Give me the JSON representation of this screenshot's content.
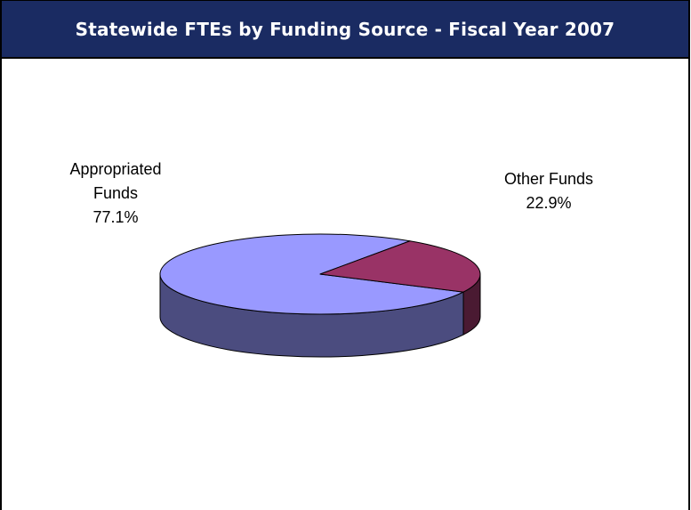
{
  "chart_data": {
    "type": "pie",
    "title": "Statewide FTEs by Funding Source - Fiscal Year 2007",
    "categories": [
      "Appropriated Funds",
      "Other Funds"
    ],
    "values": [
      77.1,
      22.9
    ],
    "labels": [
      {
        "lines": [
          "Appropriated",
          "Funds",
          "77.1%"
        ]
      },
      {
        "lines": [
          "Other Funds",
          "22.9%"
        ]
      }
    ],
    "colors": {
      "Appropriated Funds": {
        "top": "#9999ff",
        "side": "#4b4c7f"
      },
      "Other Funds": {
        "top": "#993366",
        "side": "#4a1a32"
      }
    },
    "legend": "none"
  },
  "header": {
    "background": "#1a2b62"
  }
}
